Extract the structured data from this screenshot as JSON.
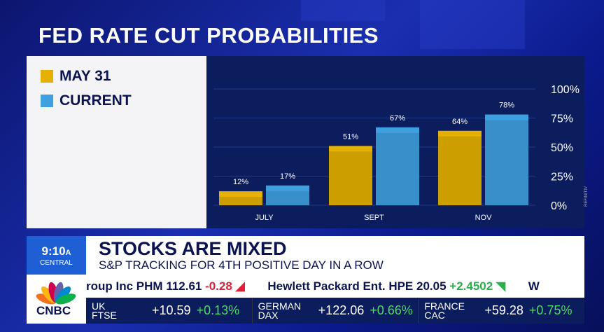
{
  "title": "FED RATE CUT PROBABILITIES",
  "chart_data": {
    "type": "bar",
    "title": "FED RATE CUT PROBABILITIES",
    "categories": [
      "JULY",
      "SEPT",
      "NOV"
    ],
    "series": [
      {
        "name": "MAY 31",
        "values": [
          12,
          51,
          64
        ],
        "labels": [
          "12%",
          "51%",
          "64%"
        ],
        "color": "#e5b000"
      },
      {
        "name": "CURRENT",
        "values": [
          17,
          67,
          78
        ],
        "labels": [
          "17%",
          "67%",
          "78%"
        ],
        "color": "#3fa0e0"
      }
    ],
    "yticks": [
      "0%",
      "25%",
      "50%",
      "75%",
      "100%"
    ],
    "ylim": [
      0,
      100
    ],
    "grid": true,
    "legend": "left"
  },
  "credit": "REFINITIV",
  "lower_third": {
    "time": "9:10",
    "ampm": "A",
    "zone": "CENTRAL",
    "headline": "STOCKS ARE MIXED",
    "subheadline": "S&P TRACKING FOR 4TH POSITIVE DAY IN A ROW",
    "logo": "CNBC",
    "ticker": [
      {
        "name": "roup Inc",
        "sym": "PHM",
        "price": "112.61",
        "chg": "-0.28",
        "dir": "down"
      },
      {
        "name": "Hewlett Packard Ent.",
        "sym": "HPE",
        "price": "20.05",
        "chg": "+2.4502",
        "dir": "up"
      },
      {
        "name": "W",
        "sym": "",
        "price": "",
        "chg": "",
        "dir": ""
      }
    ],
    "markets": [
      {
        "line1": "UK",
        "line2": "FTSE",
        "value": "+10.59",
        "pct": "+0.13%"
      },
      {
        "line1": "GERMAN",
        "line2": "DAX",
        "value": "+122.06",
        "pct": "+0.66%"
      },
      {
        "line1": "FRANCE",
        "line2": "CAC",
        "value": "+59.28",
        "pct": "+0.75%"
      }
    ]
  }
}
